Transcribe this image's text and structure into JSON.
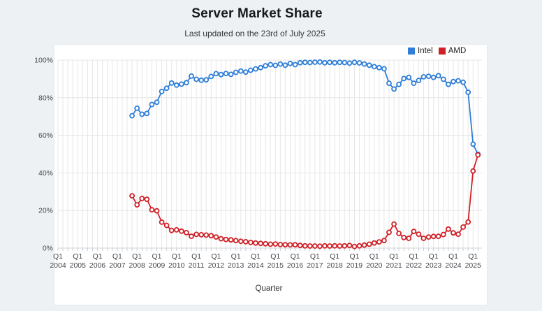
{
  "page": {
    "title": "Server Market Share",
    "subtitle": "Last updated on the 23rd of July 2025"
  },
  "chart_data": {
    "type": "line",
    "title": "Server Market Share",
    "subtitle": "Last updated on the 23rd of July 2025",
    "xlabel": "Quarter",
    "ylabel": "",
    "ylim": [
      0,
      100
    ],
    "grid": true,
    "legend_position": "top-right",
    "y_ticks": [
      "0%",
      "20%",
      "40%",
      "60%",
      "80%",
      "100%"
    ],
    "x_tick_top": "Q1",
    "x_axis_years": [
      "2004",
      "2005",
      "2006",
      "2007",
      "2008",
      "2009",
      "2010",
      "2011",
      "2012",
      "2013",
      "2014",
      "2015",
      "2016",
      "2017",
      "2018",
      "2019",
      "2020",
      "2021",
      "2022",
      "2023",
      "2024",
      "2025"
    ],
    "quarters": [
      "2007-Q4",
      "2008-Q1",
      "2008-Q2",
      "2008-Q3",
      "2008-Q4",
      "2009-Q1",
      "2009-Q2",
      "2009-Q3",
      "2009-Q4",
      "2010-Q1",
      "2010-Q2",
      "2010-Q3",
      "2010-Q4",
      "2011-Q1",
      "2011-Q2",
      "2011-Q3",
      "2011-Q4",
      "2012-Q1",
      "2012-Q2",
      "2012-Q3",
      "2012-Q4",
      "2013-Q1",
      "2013-Q2",
      "2013-Q3",
      "2013-Q4",
      "2014-Q1",
      "2014-Q2",
      "2014-Q3",
      "2014-Q4",
      "2015-Q1",
      "2015-Q2",
      "2015-Q3",
      "2015-Q4",
      "2016-Q1",
      "2016-Q2",
      "2016-Q3",
      "2016-Q4",
      "2017-Q1",
      "2017-Q2",
      "2017-Q3",
      "2017-Q4",
      "2018-Q1",
      "2018-Q2",
      "2018-Q3",
      "2018-Q4",
      "2019-Q1",
      "2019-Q2",
      "2019-Q3",
      "2019-Q4",
      "2020-Q1",
      "2020-Q2",
      "2020-Q3",
      "2020-Q4",
      "2021-Q1",
      "2021-Q2",
      "2021-Q3",
      "2021-Q4",
      "2022-Q1",
      "2022-Q2",
      "2022-Q3",
      "2022-Q4",
      "2023-Q1",
      "2023-Q2",
      "2023-Q3",
      "2023-Q4",
      "2024-Q1",
      "2024-Q2",
      "2024-Q3",
      "2024-Q4",
      "2025-Q1",
      "2025-Q2"
    ],
    "series": [
      {
        "name": "Intel",
        "color": "#2f7ed8",
        "values": [
          70.4,
          74.4,
          71.2,
          71.6,
          76.4,
          77.6,
          83.3,
          85.0,
          87.8,
          86.7,
          87.2,
          88.0,
          91.5,
          89.8,
          89.3,
          89.5,
          91.3,
          92.8,
          92.3,
          92.9,
          92.4,
          93.5,
          94.2,
          93.6,
          94.6,
          95.3,
          96.0,
          97.0,
          97.6,
          97.2,
          97.9,
          97.3,
          98.2,
          97.6,
          98.6,
          98.8,
          98.7,
          98.9,
          99.0,
          98.6,
          98.8,
          98.6,
          98.8,
          98.7,
          98.4,
          98.8,
          98.5,
          97.9,
          97.3,
          96.5,
          96.0,
          95.4,
          87.7,
          84.6,
          87.1,
          90.2,
          90.8,
          87.7,
          89.2,
          91.1,
          91.4,
          90.8,
          91.7,
          89.8,
          87.1,
          88.6,
          89.0,
          88.2,
          82.9,
          55.3,
          49.9
        ]
      },
      {
        "name": "AMD",
        "color": "#cf2127",
        "values": [
          27.8,
          23.0,
          26.4,
          26.0,
          20.4,
          19.8,
          13.8,
          12.1,
          9.4,
          9.7,
          9.0,
          8.2,
          6.3,
          7.3,
          7.1,
          6.9,
          6.6,
          5.9,
          5.0,
          4.6,
          4.4,
          4.0,
          3.6,
          3.4,
          3.0,
          2.7,
          2.5,
          2.3,
          2.1,
          2.2,
          1.9,
          1.8,
          1.7,
          1.8,
          1.4,
          1.2,
          1.1,
          1.1,
          1.0,
          1.2,
          1.1,
          1.2,
          1.1,
          1.2,
          1.4,
          0.9,
          1.2,
          1.6,
          2.1,
          2.7,
          3.3,
          4.0,
          8.4,
          12.8,
          7.8,
          5.6,
          5.2,
          8.9,
          7.4,
          5.2,
          5.9,
          6.2,
          6.3,
          7.2,
          10.1,
          8.1,
          7.4,
          11.2,
          13.9,
          41.0,
          49.6
        ]
      }
    ]
  }
}
